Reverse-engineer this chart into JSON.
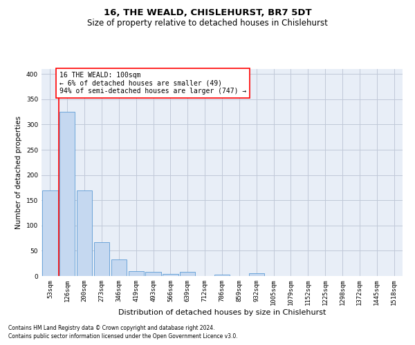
{
  "title": "16, THE WEALD, CHISLEHURST, BR7 5DT",
  "subtitle": "Size of property relative to detached houses in Chislehurst",
  "xlabel": "Distribution of detached houses by size in Chislehurst",
  "ylabel": "Number of detached properties",
  "footnote1": "Contains HM Land Registry data © Crown copyright and database right 2024.",
  "footnote2": "Contains public sector information licensed under the Open Government Licence v3.0.",
  "bar_labels": [
    "53sqm",
    "126sqm",
    "200sqm",
    "273sqm",
    "346sqm",
    "419sqm",
    "493sqm",
    "566sqm",
    "639sqm",
    "712sqm",
    "786sqm",
    "859sqm",
    "932sqm",
    "1005sqm",
    "1079sqm",
    "1152sqm",
    "1225sqm",
    "1298sqm",
    "1372sqm",
    "1445sqm",
    "1518sqm"
  ],
  "bar_values": [
    170,
    325,
    170,
    67,
    33,
    10,
    8,
    4,
    8,
    0,
    3,
    0,
    5,
    0,
    0,
    0,
    0,
    0,
    0,
    0,
    0
  ],
  "bar_color": "#c5d8f0",
  "bar_edge_color": "#5b9bd5",
  "grid_color": "#c0c8d8",
  "background_color": "#e8eef7",
  "annotation_text": "16 THE WEALD: 100sqm\n← 6% of detached houses are smaller (49)\n94% of semi-detached houses are larger (747) →",
  "annotation_box_color": "white",
  "annotation_box_edge": "red",
  "ylim": [
    0,
    410
  ],
  "yticks": [
    0,
    50,
    100,
    150,
    200,
    250,
    300,
    350,
    400
  ],
  "title_fontsize": 9.5,
  "subtitle_fontsize": 8.5,
  "xlabel_fontsize": 8,
  "ylabel_fontsize": 7.5,
  "tick_fontsize": 6.5,
  "annotation_fontsize": 7,
  "footnote_fontsize": 5.5
}
